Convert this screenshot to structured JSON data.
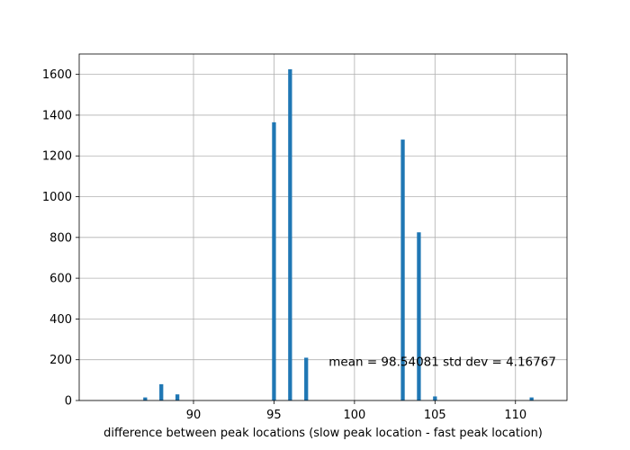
{
  "chart_data": {
    "type": "bar",
    "title": "",
    "xlabel": "difference between peak locations (slow peak location - fast peak location)",
    "ylabel": "",
    "x": [
      87,
      88,
      89,
      95,
      96,
      97,
      103,
      104,
      105,
      111
    ],
    "values": [
      15,
      80,
      30,
      1365,
      1625,
      210,
      1280,
      825,
      20,
      15
    ],
    "bin_width": 0.24,
    "xlim": [
      82.9,
      113.2
    ],
    "ylim": [
      0,
      1700
    ],
    "xticks": [
      90,
      95,
      100,
      105,
      110
    ],
    "xtick_labels": [
      "90",
      "95",
      "100",
      "105",
      "110"
    ],
    "yticks": [
      0,
      200,
      400,
      600,
      800,
      1000,
      1200,
      1400,
      1600
    ],
    "ytick_labels": [
      "0",
      "200",
      "400",
      "600",
      "800",
      "1000",
      "1200",
      "1400",
      "1600"
    ],
    "grid": true,
    "bar_color": "#1f77b4",
    "annotation": {
      "text": "mean = 98.54081 std dev = 4.16767",
      "x": 98.4,
      "y": 170
    }
  }
}
